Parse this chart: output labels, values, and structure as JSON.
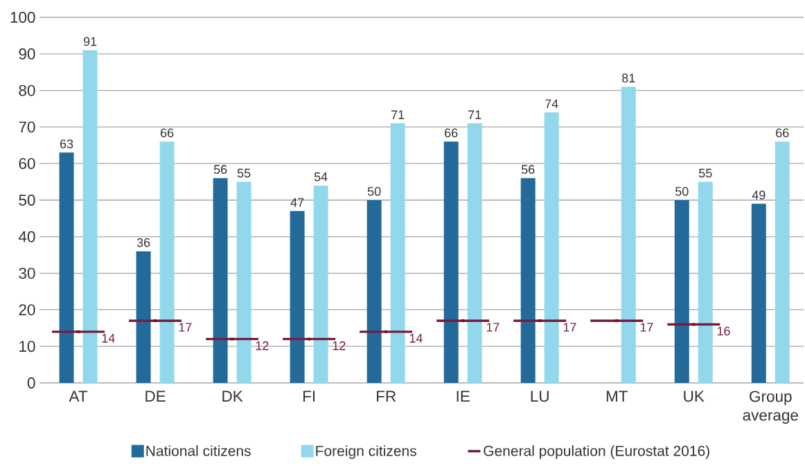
{
  "chart_data": {
    "type": "bar",
    "categories": [
      "AT",
      "DE",
      "DK",
      "FI",
      "FR",
      "IE",
      "LU",
      "MT",
      "UK",
      "Group average"
    ],
    "series": [
      {
        "name": "National citizens",
        "color": "#236a9b",
        "values": [
          63,
          36,
          56,
          47,
          50,
          66,
          56,
          null,
          50,
          49
        ]
      },
      {
        "name": "Foreign citizens",
        "color": "#92d8ec",
        "values": [
          91,
          66,
          55,
          54,
          71,
          71,
          74,
          81,
          55,
          66
        ]
      },
      {
        "name": "General population (Eurostat 2016)",
        "type": "scatter",
        "marker": "square",
        "line_style": "solid",
        "color": "#761d3f",
        "x": [
          "AT",
          "DE",
          "DK",
          "FI",
          "FR",
          "IE",
          "LU",
          "MT",
          "UK",
          "Group average"
        ],
        "values": [
          14,
          17,
          12,
          12,
          14,
          17,
          17,
          17,
          16,
          null
        ]
      }
    ],
    "ylim": [
      0,
      100
    ],
    "yticks": [
      0,
      10,
      20,
      30,
      40,
      50,
      60,
      70,
      80,
      90,
      100
    ],
    "grid": "y",
    "legend": "bottom",
    "data_labels": true
  }
}
